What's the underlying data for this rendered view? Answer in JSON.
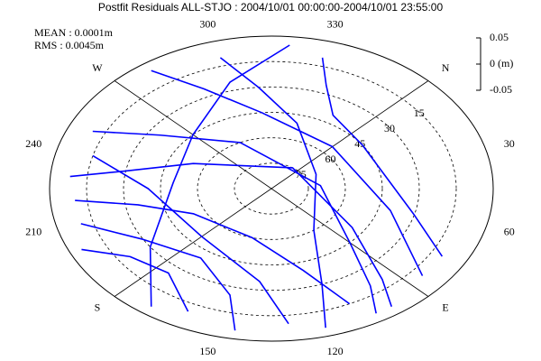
{
  "chart_data": {
    "type": "skyplot",
    "title": "Postfit Residuals ALL-STJO : 2004/10/01 00:00:00-2004/10/01 23:55:00",
    "mean": "MEAN : 0.0001m",
    "rms": "RMS : 0.0045m",
    "color": "#0000ff",
    "azticks": [
      {
        "value": 0,
        "label": "N"
      },
      30,
      60,
      {
        "value": 90,
        "label": "E"
      },
      120,
      150,
      {
        "value": 180,
        "label": "S"
      },
      210,
      240,
      {
        "value": 270,
        "label": "W"
      },
      300,
      330
    ],
    "elim": [
      0,
      90
    ],
    "elticks": [
      15,
      30,
      45,
      60,
      75
    ],
    "residual_lim": [
      -0.05,
      0.05
    ],
    "residual_ticks": [
      {
        "value": 0.05,
        "label": "0.05"
      },
      {
        "value": 0,
        "label": "0 (m)"
      },
      {
        "value": -0.05,
        "label": "-0.05"
      }
    ],
    "tracks": [
      {
        "az": [
          300,
          310,
          330,
          20,
          100,
          115,
          120
        ],
        "el": [
          10,
          30,
          50,
          70,
          60,
          30,
          5
        ]
      },
      {
        "az": [
          250,
          260,
          290,
          40,
          90,
          100,
          105
        ],
        "el": [
          10,
          35,
          60,
          70,
          45,
          20,
          5
        ]
      },
      {
        "az": [
          230,
          235,
          250,
          350,
          80,
          95,
          100
        ],
        "el": [
          8,
          30,
          55,
          75,
          50,
          20,
          5
        ]
      },
      {
        "az": [
          220,
          215,
          200,
          150,
          120,
          110
        ],
        "el": [
          10,
          35,
          55,
          60,
          40,
          15
        ]
      },
      {
        "az": [
          240,
          225,
          180,
          140,
          130
        ],
        "el": [
          15,
          40,
          50,
          35,
          10
        ]
      },
      {
        "az": [
          210,
          195,
          170,
          150,
          145
        ],
        "el": [
          10,
          30,
          40,
          25,
          5
        ]
      },
      {
        "az": [
          330,
          335,
          345,
          10,
          60,
          75
        ],
        "el": [
          10,
          25,
          40,
          45,
          30,
          10
        ]
      },
      {
        "az": [
          280,
          290,
          310,
          0,
          60,
          85
        ],
        "el": [
          5,
          25,
          45,
          55,
          40,
          10
        ]
      },
      {
        "az": [
          200,
          190,
          175,
          160
        ],
        "el": [
          5,
          20,
          25,
          10
        ]
      },
      {
        "az": [
          320,
          300,
          270,
          230,
          190,
          170
        ],
        "el": [
          5,
          25,
          45,
          50,
          30,
          5
        ]
      }
    ]
  }
}
